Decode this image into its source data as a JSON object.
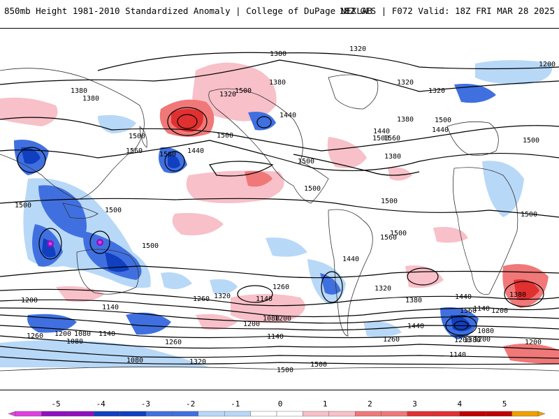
{
  "header": {
    "title": "850mb Height 1981-2010 Standardized Anomaly | College of DuPage NEXLAB",
    "model_info": "18Z GFS | F072 Valid: 18Z FRI MAR 28 2025"
  },
  "colors": {
    "neg5": "#e040e0",
    "neg4": "#9010c0",
    "neg3": "#1040c0",
    "neg2": "#4070e0",
    "neg1": "#b8d8f8",
    "zero_low": "#ffffff",
    "pos1": "#f8c0c8",
    "pos2": "#f07878",
    "pos3": "#e03030",
    "pos4": "#c00000",
    "pos5": "#f0a000"
  },
  "colorbar": {
    "ticks": [
      "-5",
      "-4",
      "-3",
      "-2",
      "-1",
      "0",
      "1",
      "2",
      "3",
      "4",
      "5"
    ]
  },
  "contour_labels": [
    "1320",
    "1380",
    "1200",
    "1380",
    "1320",
    "1320",
    "1380",
    "1320",
    "1440",
    "1500",
    "1380",
    "1500",
    "1440",
    "1380",
    "1500",
    "1440",
    "1500",
    "1560",
    "1500",
    "1440",
    "1500",
    "1500",
    "1560",
    "1500",
    "1500",
    "1500",
    "1500",
    "1500",
    "1500",
    "1500",
    "1500",
    "1560",
    "1440",
    "1380",
    "1320",
    "1260",
    "1200",
    "1140",
    "1080",
    "1200",
    "1260",
    "1140",
    "1080",
    "1260",
    "1200",
    "1140",
    "1080",
    "1140",
    "1200",
    "1260",
    "1320",
    "1380",
    "1440",
    "1560",
    "1200",
    "1140",
    "1080",
    "1200",
    "1260",
    "1380",
    "1200",
    "1140",
    "1200",
    "1080",
    "1320",
    "1500",
    "1500",
    "1440",
    "1380"
  ],
  "anomaly_legend": "standardized anomaly"
}
